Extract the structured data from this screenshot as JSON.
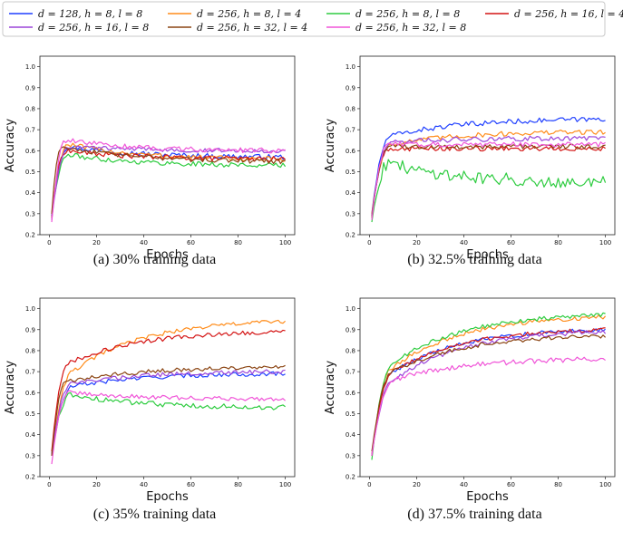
{
  "legend": {
    "items": [
      {
        "label": "d = 128, h = 8, l = 8",
        "color": "#1f3fff"
      },
      {
        "label": "d = 256, h = 8, l = 4",
        "color": "#ff8c1a"
      },
      {
        "label": "d = 256, h = 8, l = 8",
        "color": "#2ecc40"
      },
      {
        "label": "d = 256, h = 16, l = 4",
        "color": "#d41414"
      },
      {
        "label": "d = 256, h = 16, l = 8",
        "color": "#9b45d9"
      },
      {
        "label": "d = 256, h = 32, l = 4",
        "color": "#8b4513"
      },
      {
        "label": "d = 256, h = 32, l = 8",
        "color": "#f055d8"
      }
    ]
  },
  "chart_data": [
    {
      "type": "line",
      "caption": "(a) 30% training data",
      "xlabel": "Epochs",
      "ylabel": "Accuracy",
      "xlim": [
        -4,
        104
      ],
      "ylim": [
        0.2,
        1.05
      ],
      "xticks": [
        0,
        20,
        40,
        60,
        80,
        100
      ],
      "yticks": [
        0.2,
        0.3,
        0.4,
        0.5,
        0.6,
        0.7,
        0.8,
        0.9,
        1.0
      ],
      "series": [
        {
          "name": "d = 128, h = 8, l = 8",
          "start": 0.29,
          "peak": 0.62,
          "peak_at": 8,
          "final": 0.57,
          "noise": 0.012
        },
        {
          "name": "d = 256, h = 8, l = 4",
          "start": 0.3,
          "peak": 0.63,
          "peak_at": 8,
          "final": 0.56,
          "noise": 0.012
        },
        {
          "name": "d = 256, h = 8, l = 8",
          "start": 0.3,
          "peak": 0.58,
          "peak_at": 8,
          "final": 0.53,
          "noise": 0.012
        },
        {
          "name": "d = 256, h = 16, l = 4",
          "start": 0.28,
          "peak": 0.6,
          "peak_at": 7,
          "final": 0.56,
          "noise": 0.012
        },
        {
          "name": "d = 256, h = 16, l = 8",
          "start": 0.27,
          "peak": 0.62,
          "peak_at": 8,
          "final": 0.6,
          "noise": 0.01
        },
        {
          "name": "d = 256, h = 32, l = 4",
          "start": 0.3,
          "peak": 0.62,
          "peak_at": 5,
          "final": 0.55,
          "noise": 0.012
        },
        {
          "name": "d = 256, h = 32, l = 8",
          "start": 0.26,
          "peak": 0.65,
          "peak_at": 7,
          "final": 0.6,
          "noise": 0.012
        }
      ]
    },
    {
      "type": "line",
      "caption": "(b) 32.5% training data",
      "xlabel": "Epochs",
      "ylabel": "Accuracy",
      "xlim": [
        -4,
        104
      ],
      "ylim": [
        0.2,
        1.05
      ],
      "xticks": [
        0,
        20,
        40,
        60,
        80,
        100
      ],
      "yticks": [
        0.2,
        0.3,
        0.4,
        0.5,
        0.6,
        0.7,
        0.8,
        0.9,
        1.0
      ],
      "series": [
        {
          "name": "d = 128, h = 8, l = 8",
          "start": 0.3,
          "peak": 0.67,
          "peak_at": 9,
          "final": 0.75,
          "noise": 0.012
        },
        {
          "name": "d = 256, h = 8, l = 4",
          "start": 0.3,
          "peak": 0.63,
          "peak_at": 9,
          "final": 0.69,
          "noise": 0.012
        },
        {
          "name": "d = 256, h = 8, l = 8",
          "start": 0.26,
          "peak": 0.54,
          "peak_at": 8,
          "final": 0.45,
          "noise": 0.03
        },
        {
          "name": "d = 256, h = 16, l = 4",
          "start": 0.29,
          "peak": 0.61,
          "peak_at": 8,
          "final": 0.61,
          "noise": 0.012
        },
        {
          "name": "d = 256, h = 16, l = 8",
          "start": 0.29,
          "peak": 0.64,
          "peak_at": 9,
          "final": 0.66,
          "noise": 0.012
        },
        {
          "name": "d = 256, h = 32, l = 4",
          "start": 0.28,
          "peak": 0.62,
          "peak_at": 8,
          "final": 0.62,
          "noise": 0.012
        },
        {
          "name": "d = 256, h = 32, l = 8",
          "start": 0.27,
          "peak": 0.63,
          "peak_at": 8,
          "final": 0.63,
          "noise": 0.012
        }
      ]
    },
    {
      "type": "line",
      "caption": "(c) 35% training data",
      "xlabel": "Epochs",
      "ylabel": "Accuracy",
      "xlim": [
        -4,
        104
      ],
      "ylim": [
        0.2,
        1.05
      ],
      "xticks": [
        0,
        20,
        40,
        60,
        80,
        100
      ],
      "yticks": [
        0.2,
        0.3,
        0.4,
        0.5,
        0.6,
        0.7,
        0.8,
        0.9,
        1.0
      ],
      "series": [
        {
          "name": "d = 128, h = 8, l = 8",
          "start": 0.31,
          "peak": 0.63,
          "peak_at": 10,
          "final": 0.69,
          "noise": 0.01
        },
        {
          "name": "d = 256, h = 8, l = 4",
          "start": 0.3,
          "peak": 0.7,
          "peak_at": 10,
          "final": 0.94,
          "noise": 0.01
        },
        {
          "name": "d = 256, h = 8, l = 8",
          "start": 0.3,
          "peak": 0.59,
          "peak_at": 9,
          "final": 0.53,
          "noise": 0.012
        },
        {
          "name": "d = 256, h = 16, l = 4",
          "start": 0.32,
          "peak": 0.74,
          "peak_at": 8,
          "final": 0.89,
          "noise": 0.01
        },
        {
          "name": "d = 256, h = 16, l = 8",
          "start": 0.3,
          "peak": 0.64,
          "peak_at": 9,
          "final": 0.7,
          "noise": 0.01
        },
        {
          "name": "d = 256, h = 32, l = 4",
          "start": 0.3,
          "peak": 0.65,
          "peak_at": 7,
          "final": 0.72,
          "noise": 0.01
        },
        {
          "name": "d = 256, h = 32, l = 8",
          "start": 0.26,
          "peak": 0.6,
          "peak_at": 8,
          "final": 0.57,
          "noise": 0.01
        }
      ]
    },
    {
      "type": "line",
      "caption": "(d) 37.5% training data",
      "xlabel": "Epochs",
      "ylabel": "Accuracy",
      "xlim": [
        -4,
        104
      ],
      "ylim": [
        0.2,
        1.05
      ],
      "xticks": [
        0,
        20,
        40,
        60,
        80,
        100
      ],
      "yticks": [
        0.2,
        0.3,
        0.4,
        0.5,
        0.6,
        0.7,
        0.8,
        0.9,
        1.0
      ],
      "series": [
        {
          "name": "d = 128, h = 8, l = 8",
          "start": 0.3,
          "peak": 0.7,
          "peak_at": 10,
          "final": 0.9,
          "noise": 0.01
        },
        {
          "name": "d = 256, h = 8, l = 4",
          "start": 0.3,
          "peak": 0.72,
          "peak_at": 10,
          "final": 0.96,
          "noise": 0.01
        },
        {
          "name": "d = 256, h = 8, l = 8",
          "start": 0.28,
          "peak": 0.74,
          "peak_at": 10,
          "final": 0.97,
          "noise": 0.01
        },
        {
          "name": "d = 256, h = 16, l = 4",
          "start": 0.3,
          "peak": 0.7,
          "peak_at": 10,
          "final": 0.9,
          "noise": 0.01
        },
        {
          "name": "d = 256, h = 16, l = 8",
          "start": 0.3,
          "peak": 0.66,
          "peak_at": 10,
          "final": 0.89,
          "noise": 0.01
        },
        {
          "name": "d = 256, h = 32, l = 4",
          "start": 0.32,
          "peak": 0.7,
          "peak_at": 10,
          "final": 0.87,
          "noise": 0.01
        },
        {
          "name": "d = 256, h = 32, l = 8",
          "start": 0.3,
          "peak": 0.66,
          "peak_at": 10,
          "final": 0.76,
          "noise": 0.012
        }
      ]
    }
  ]
}
